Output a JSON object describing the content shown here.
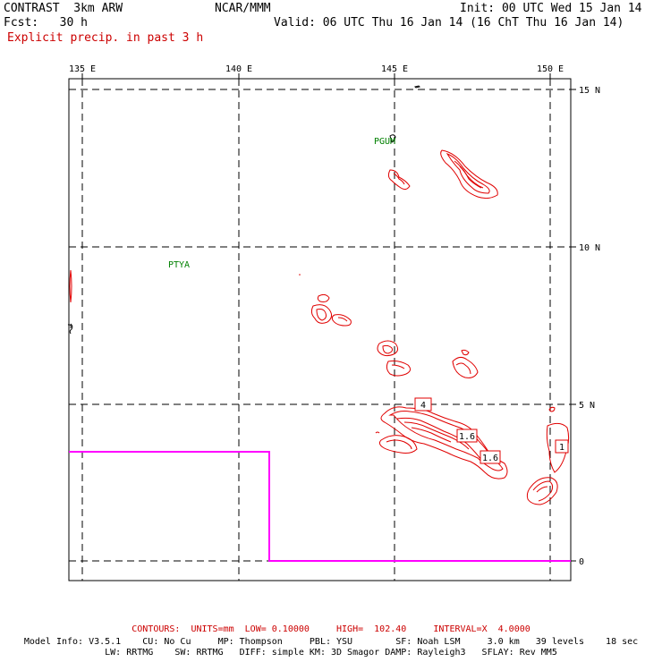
{
  "header": {
    "model": "CONTRAST  3km ARW",
    "forecast": "Fcst:   30 h",
    "precip_label": "Explicit precip. in past 3 h",
    "center": "NCAR/MMM",
    "init": "Init: 00 UTC Wed 15 Jan 14",
    "valid": "Valid: 06 UTC Thu 16 Jan 14 (16 ChT Thu 16 Jan 14)"
  },
  "lon_labels": [
    "135 E",
    "140 E",
    "145 E",
    "150 E"
  ],
  "lat_labels": [
    "15 N",
    "10 N",
    "5 N",
    "0"
  ],
  "stations": [
    "PGUM",
    "PTYA"
  ],
  "contour_labels": [
    "4",
    "1.6",
    "1.6",
    "1"
  ],
  "footer": {
    "contours": "CONTOURS:  UNITS=mm  LOW= 0.10000     HIGH=  102.40     INTERVAL=X  4.0000",
    "model_info_1": "Model Info: V3.5.1    CU: No Cu     MP: Thompson     PBL: YSU        SF: Noah LSM     3.0 km   39 levels    18 sec",
    "model_info_2": "LW: RRTMG    SW: RRTMG   DIFF: simple KM: 3D Smagor DAMP: Rayleigh3   SFLAY: Rev MM5"
  },
  "colors": {
    "precip": "#e00000",
    "boundary": "#ff00ff",
    "station": "#008000",
    "header_red": "#cc0000"
  }
}
